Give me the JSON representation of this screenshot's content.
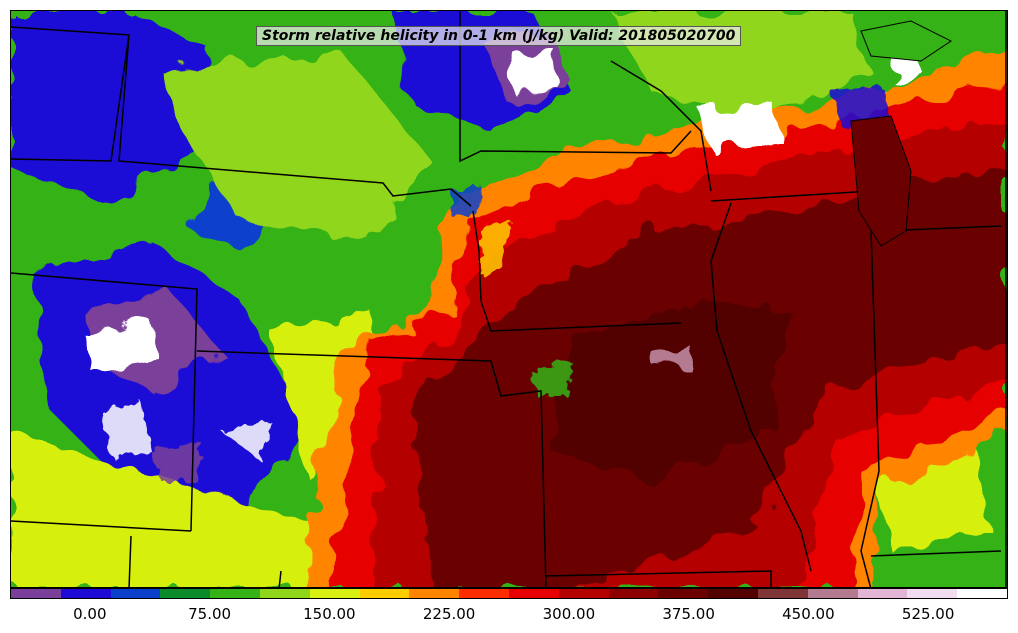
{
  "title": "Storm relative helicity in 0-1 km (J/kg) Valid: 201805020700",
  "colorbar": {
    "colors": [
      "#7a3f9a",
      "#1d0ad6",
      "#0a3fcc",
      "#0a8a2a",
      "#35b215",
      "#8fd61a",
      "#d7ef11",
      "#ffcc00",
      "#ff8400",
      "#ff2d00",
      "#e60000",
      "#b50000",
      "#8c0000",
      "#6a0000",
      "#520000",
      "#7f3535",
      "#b47a90",
      "#e2b5d6",
      "#f2dcf0",
      "#ffffff"
    ],
    "tick_labels": [
      "0.00",
      "75.00",
      "150.00",
      "225.00",
      "300.00",
      "375.00",
      "450.00",
      "525.00"
    ],
    "tick_values": [
      0,
      75,
      150,
      225,
      300,
      375,
      450,
      525
    ],
    "min": -50,
    "max": 575
  },
  "map_colors": {
    "border": "#000000",
    "water": "#1a1a1a"
  }
}
